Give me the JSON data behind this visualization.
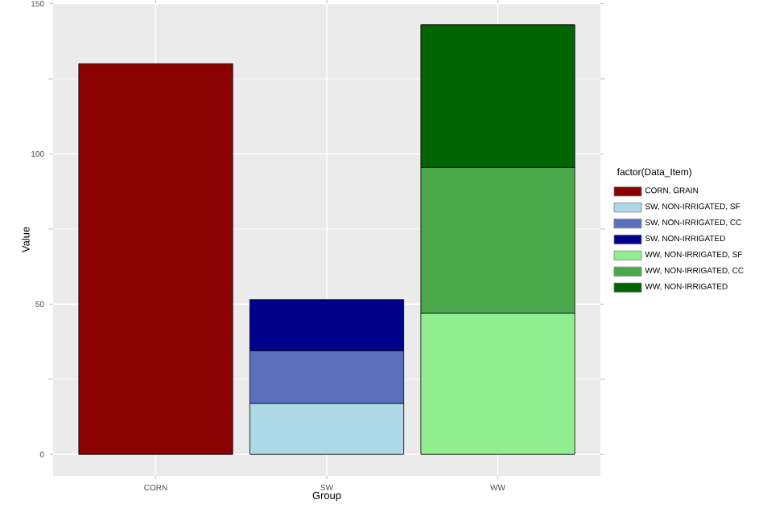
{
  "chart_data": {
    "type": "bar",
    "stacked": true,
    "xlabel": "Group",
    "ylabel": "Value",
    "legend_title": "factor(Data_Item)",
    "categories": [
      "CORN",
      "SW",
      "WW"
    ],
    "series": [
      {
        "name": "CORN, GRAIN",
        "color": "#8b0000",
        "values": [
          130,
          null,
          null
        ]
      },
      {
        "name": "SW, NON-IRRIGATED, SF",
        "color": "#add8e6",
        "values": [
          null,
          17,
          null
        ]
      },
      {
        "name": "SW, NON-IRRIGATED, CC",
        "color": "#5a6fbd",
        "values": [
          null,
          17.5,
          null
        ]
      },
      {
        "name": "SW, NON-IRRIGATED",
        "color": "#00008b",
        "values": [
          null,
          17,
          null
        ]
      },
      {
        "name": "WW, NON-IRRIGATED, SF",
        "color": "#90ee90",
        "values": [
          null,
          null,
          47
        ]
      },
      {
        "name": "WW, NON-IRRIGATED, CC",
        "color": "#4aa84a",
        "values": [
          null,
          null,
          48.5
        ]
      },
      {
        "name": "WW, NON-IRRIGATED",
        "color": "#006400",
        "values": [
          null,
          null,
          47.5
        ]
      }
    ],
    "ylim": [
      -7.15,
      150.15
    ],
    "yticks": [
      0,
      50,
      100,
      150
    ],
    "grid": true,
    "legend": "right"
  }
}
